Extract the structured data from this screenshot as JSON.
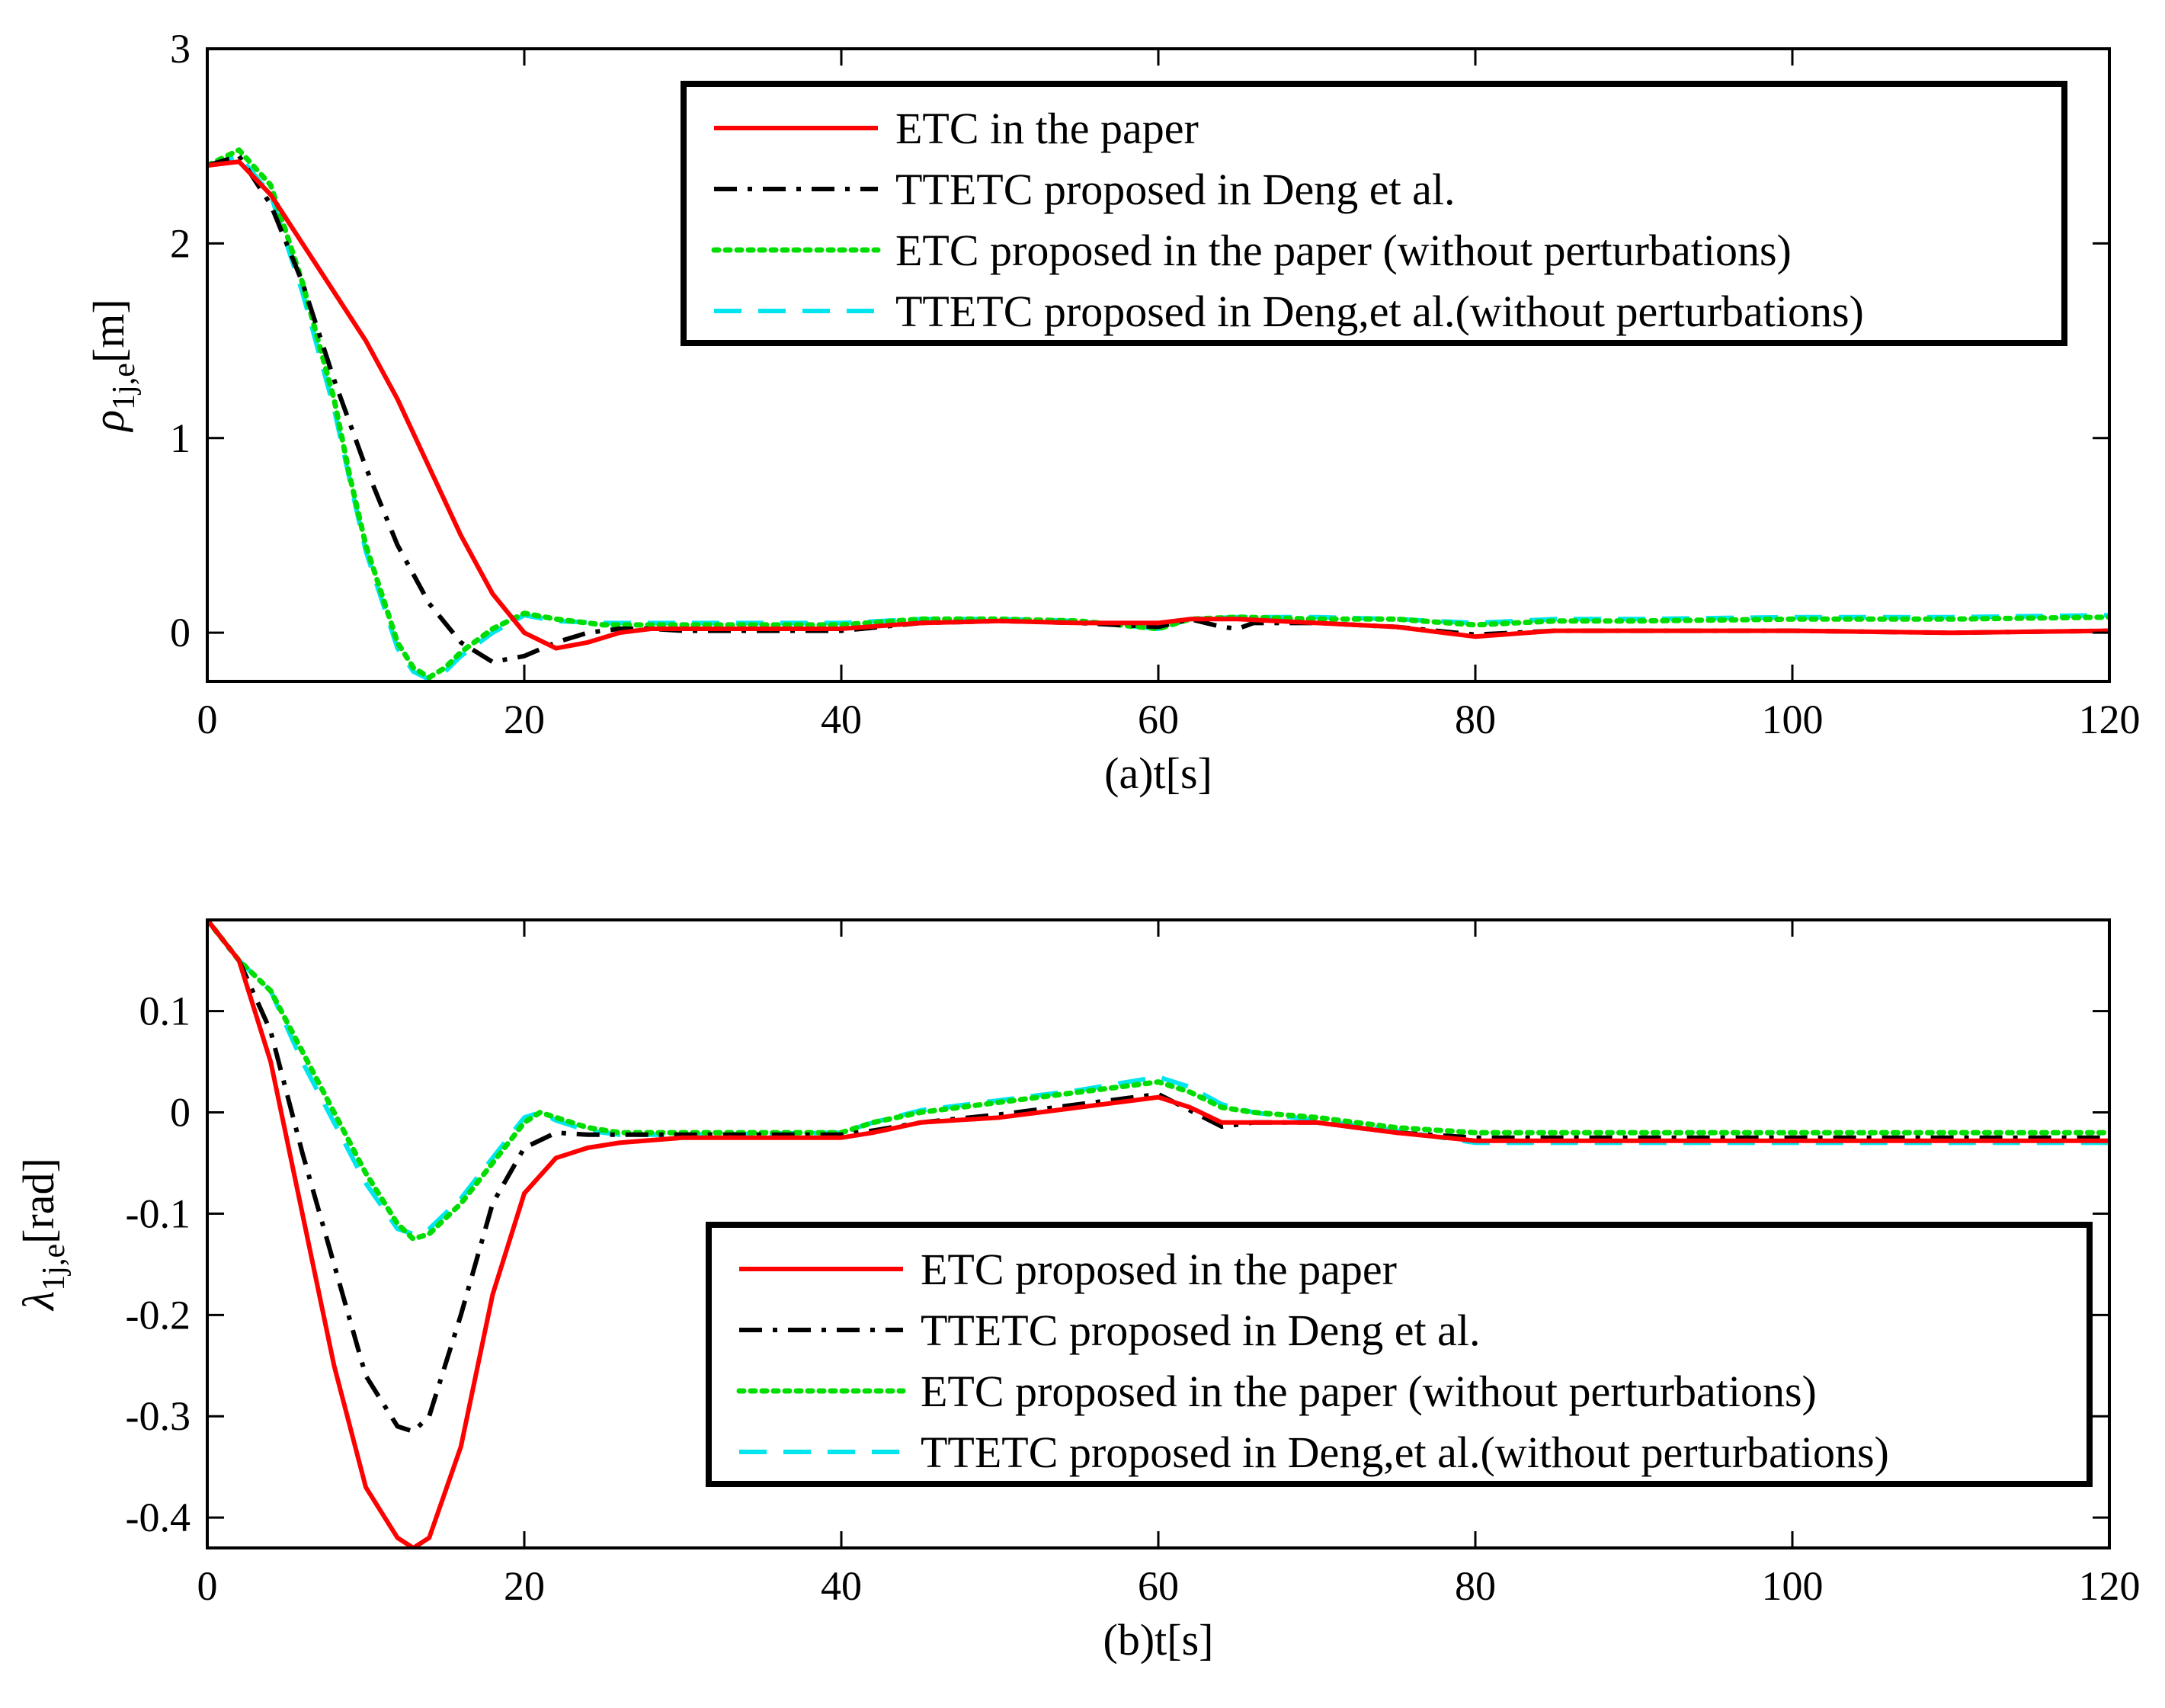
{
  "colors": {
    "etc": "#ff0000",
    "ttetc": "#000000",
    "etc_noperturb": "#00dd00",
    "ttetc_noperturb": "#00e5ee"
  },
  "chart_data": [
    {
      "type": "line",
      "xlabel": "(a)t[s]",
      "ylabel": {
        "symbol": "ρ",
        "subscript": "1j,e",
        "unit": "[m]"
      },
      "xlim": [
        0,
        120
      ],
      "ylim": [
        -0.25,
        3
      ],
      "xticks": [
        0,
        20,
        40,
        60,
        80,
        100,
        120
      ],
      "yticks": [
        0,
        1,
        2,
        3
      ],
      "xtick_labels": [
        "0",
        "20",
        "40",
        "60",
        "80",
        "100",
        "120"
      ],
      "ytick_labels": [
        "0",
        "1",
        "2",
        "3"
      ],
      "legend_position": "top-right",
      "grid": false,
      "series": [
        {
          "name": "ETC in the paper",
          "style": "solid",
          "color": "#ff0000",
          "x": [
            0,
            2,
            4,
            6,
            8,
            10,
            12,
            14,
            16,
            18,
            20,
            22,
            24,
            26,
            28,
            30,
            40,
            45,
            50,
            55,
            60,
            62,
            65,
            70,
            75,
            80,
            85,
            90,
            100,
            110,
            120
          ],
          "y": [
            2.4,
            2.42,
            2.25,
            2.0,
            1.75,
            1.5,
            1.2,
            0.85,
            0.5,
            0.2,
            0.0,
            -0.08,
            -0.05,
            0.0,
            0.02,
            0.02,
            0.02,
            0.05,
            0.06,
            0.05,
            0.05,
            0.07,
            0.07,
            0.05,
            0.03,
            -0.02,
            0.01,
            0.01,
            0.01,
            0.0,
            0.01
          ]
        },
        {
          "name": "TTETC proposed in Deng et al.",
          "style": "dashdot",
          "color": "#000000",
          "x": [
            0,
            2,
            4,
            6,
            8,
            10,
            12,
            14,
            16,
            18,
            20,
            22,
            24,
            26,
            28,
            30,
            40,
            45,
            50,
            55,
            60,
            62,
            64,
            65,
            66,
            70,
            75,
            80,
            85,
            90,
            100,
            110,
            120
          ],
          "y": [
            2.4,
            2.45,
            2.2,
            1.8,
            1.3,
            0.85,
            0.45,
            0.15,
            -0.05,
            -0.15,
            -0.12,
            -0.05,
            0.0,
            0.02,
            0.02,
            0.01,
            0.01,
            0.05,
            0.06,
            0.05,
            0.03,
            0.07,
            0.03,
            0.02,
            0.05,
            0.05,
            0.03,
            -0.01,
            0.01,
            0.01,
            0.01,
            0.0,
            0.01
          ]
        },
        {
          "name": "ETC proposed in the paper (without perturbations)",
          "style": "dotted",
          "color": "#00dd00",
          "x": [
            0,
            2,
            4,
            6,
            8,
            9,
            10,
            12,
            13,
            14,
            15,
            16,
            18,
            20,
            22,
            25,
            30,
            40,
            45,
            50,
            55,
            60,
            62,
            65,
            70,
            75,
            80,
            85,
            90,
            100,
            110,
            120
          ],
          "y": [
            2.4,
            2.48,
            2.3,
            1.8,
            1.2,
            0.8,
            0.45,
            -0.05,
            -0.18,
            -0.23,
            -0.18,
            -0.1,
            0.02,
            0.1,
            0.07,
            0.04,
            0.04,
            0.04,
            0.07,
            0.07,
            0.06,
            0.02,
            0.07,
            0.08,
            0.07,
            0.07,
            0.04,
            0.06,
            0.06,
            0.07,
            0.07,
            0.08
          ]
        },
        {
          "name": "TTETC proposed in Deng,et al.(without perturbations)",
          "style": "dashed",
          "color": "#00e5ee",
          "x": [
            0,
            2,
            4,
            6,
            8,
            9,
            10,
            12,
            13,
            14,
            15,
            16,
            18,
            20,
            22,
            25,
            30,
            40,
            45,
            50,
            55,
            60,
            62,
            65,
            70,
            75,
            80,
            85,
            90,
            100,
            110,
            120
          ],
          "y": [
            2.4,
            2.45,
            2.25,
            1.75,
            1.15,
            0.78,
            0.42,
            -0.08,
            -0.2,
            -0.24,
            -0.2,
            -0.12,
            0.0,
            0.09,
            0.06,
            0.05,
            0.05,
            0.05,
            0.07,
            0.07,
            0.06,
            0.02,
            0.07,
            0.08,
            0.08,
            0.07,
            0.05,
            0.07,
            0.07,
            0.08,
            0.08,
            0.09
          ]
        }
      ]
    },
    {
      "type": "line",
      "xlabel": "(b)t[s]",
      "ylabel": {
        "symbol": "λ",
        "subscript": "1j,e",
        "unit": "[rad]"
      },
      "xlim": [
        0,
        120
      ],
      "ylim": [
        -0.43,
        0.19
      ],
      "xticks": [
        0,
        20,
        40,
        60,
        80,
        100,
        120
      ],
      "yticks": [
        0.1,
        0,
        -0.1,
        -0.2,
        -0.3,
        -0.4
      ],
      "xtick_labels": [
        "0",
        "20",
        "40",
        "60",
        "80",
        "100",
        "120"
      ],
      "ytick_labels": [
        "0.1",
        "0",
        "-0.1",
        "-0.2",
        "-0.3",
        "-0.4"
      ],
      "legend_position": "bottom-right",
      "grid": false,
      "series": [
        {
          "name": "ETC proposed in the paper",
          "style": "solid",
          "color": "#ff0000",
          "x": [
            0,
            2,
            4,
            6,
            8,
            10,
            12,
            13,
            14,
            16,
            18,
            20,
            22,
            24,
            26,
            30,
            40,
            42,
            45,
            50,
            55,
            60,
            62,
            64,
            66,
            70,
            75,
            80,
            90,
            100,
            110,
            120
          ],
          "y": [
            0.19,
            0.15,
            0.05,
            -0.1,
            -0.25,
            -0.37,
            -0.42,
            -0.43,
            -0.42,
            -0.33,
            -0.18,
            -0.08,
            -0.045,
            -0.035,
            -0.03,
            -0.025,
            -0.025,
            -0.02,
            -0.01,
            -0.005,
            0.005,
            0.015,
            0.005,
            -0.01,
            -0.01,
            -0.01,
            -0.02,
            -0.028,
            -0.028,
            -0.028,
            -0.028,
            -0.028
          ]
        },
        {
          "name": "TTETC proposed in Deng et al.",
          "style": "dashdot",
          "color": "#000000",
          "x": [
            0,
            2,
            4,
            6,
            8,
            10,
            12,
            13,
            14,
            16,
            18,
            20,
            22,
            24,
            26,
            30,
            40,
            42,
            45,
            50,
            55,
            60,
            62,
            64,
            66,
            70,
            75,
            80,
            90,
            100,
            110,
            120
          ],
          "y": [
            0.19,
            0.15,
            0.08,
            -0.04,
            -0.15,
            -0.26,
            -0.31,
            -0.315,
            -0.3,
            -0.2,
            -0.09,
            -0.035,
            -0.02,
            -0.022,
            -0.022,
            -0.022,
            -0.022,
            -0.018,
            -0.01,
            -0.002,
            0.008,
            0.018,
            0.002,
            -0.014,
            -0.01,
            -0.01,
            -0.02,
            -0.025,
            -0.025,
            -0.025,
            -0.025,
            -0.025
          ]
        },
        {
          "name": "ETC proposed in the paper (without perturbations)",
          "style": "dotted",
          "color": "#00dd00",
          "x": [
            0,
            2,
            4,
            6,
            8,
            10,
            12,
            13,
            14,
            16,
            18,
            20,
            21,
            22,
            24,
            26,
            30,
            40,
            42,
            45,
            50,
            55,
            60,
            62,
            64,
            66,
            70,
            75,
            80,
            90,
            100,
            110,
            120
          ],
          "y": [
            0.19,
            0.15,
            0.12,
            0.06,
            0.0,
            -0.06,
            -0.11,
            -0.125,
            -0.12,
            -0.09,
            -0.05,
            -0.01,
            0.0,
            -0.005,
            -0.015,
            -0.02,
            -0.02,
            -0.02,
            -0.01,
            0.0,
            0.01,
            0.02,
            0.03,
            0.02,
            0.005,
            0.0,
            -0.005,
            -0.015,
            -0.02,
            -0.02,
            -0.02,
            -0.02,
            -0.02
          ]
        },
        {
          "name": "TTETC proposed in Deng,et al.(without perturbations)",
          "style": "dashed",
          "color": "#00e5ee",
          "x": [
            0,
            2,
            4,
            6,
            8,
            10,
            12,
            13,
            14,
            16,
            18,
            20,
            21,
            22,
            24,
            26,
            30,
            40,
            42,
            45,
            50,
            55,
            60,
            62,
            64,
            66,
            70,
            75,
            80,
            90,
            100,
            110,
            120
          ],
          "y": [
            0.19,
            0.15,
            0.12,
            0.05,
            -0.01,
            -0.07,
            -0.115,
            -0.12,
            -0.115,
            -0.085,
            -0.045,
            -0.005,
            0.0,
            -0.008,
            -0.018,
            -0.022,
            -0.022,
            -0.02,
            -0.01,
            0.002,
            0.012,
            0.022,
            0.035,
            0.025,
            0.008,
            0.0,
            -0.008,
            -0.018,
            -0.03,
            -0.03,
            -0.03,
            -0.03,
            -0.03
          ]
        }
      ]
    }
  ]
}
